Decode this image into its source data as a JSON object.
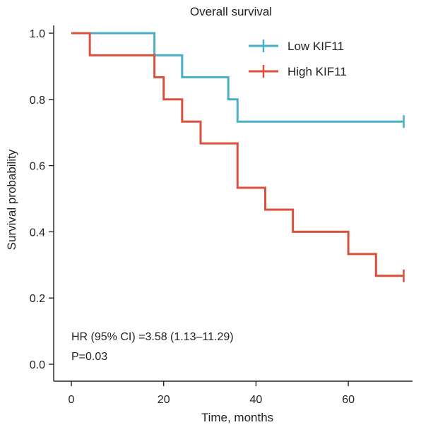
{
  "chart_data": {
    "type": "line",
    "subtype": "kaplan-meier",
    "title": "Overall survival",
    "xlabel": "Time, months",
    "ylabel": "Survival probability",
    "xlim": [
      -4,
      76
    ],
    "ylim": [
      -0.05,
      1.05
    ],
    "xticks": [
      0,
      20,
      40,
      60
    ],
    "yticks": [
      0.0,
      0.2,
      0.4,
      0.6,
      0.8,
      1.0
    ],
    "ytick_labels": [
      "0.0",
      "0.2",
      "0.4",
      "0.6",
      "0.8",
      "1.0"
    ],
    "grid": false,
    "legend_position": "top-right",
    "series": [
      {
        "name": "Low KIF11",
        "color": "#4aaec5",
        "steps": [
          [
            0,
            1.0
          ],
          [
            18,
            0.933
          ],
          [
            24,
            0.867
          ],
          [
            34,
            0.8
          ],
          [
            36,
            0.733
          ],
          [
            72,
            0.733
          ]
        ],
        "censored": [
          [
            72,
            0.733
          ]
        ]
      },
      {
        "name": "High KIF11",
        "color": "#d9503c",
        "steps": [
          [
            0,
            1.0
          ],
          [
            4,
            0.933
          ],
          [
            18,
            0.867
          ],
          [
            20,
            0.8
          ],
          [
            24,
            0.733
          ],
          [
            28,
            0.667
          ],
          [
            36,
            0.533
          ],
          [
            42,
            0.467
          ],
          [
            48,
            0.4
          ],
          [
            60,
            0.333
          ],
          [
            66,
            0.267
          ],
          [
            72,
            0.267
          ]
        ],
        "censored": [
          [
            72,
            0.267
          ]
        ]
      }
    ],
    "annotations": [
      "HR (95% CI) =3.58 (1.13–11.29)",
      "P=0.03"
    ]
  }
}
